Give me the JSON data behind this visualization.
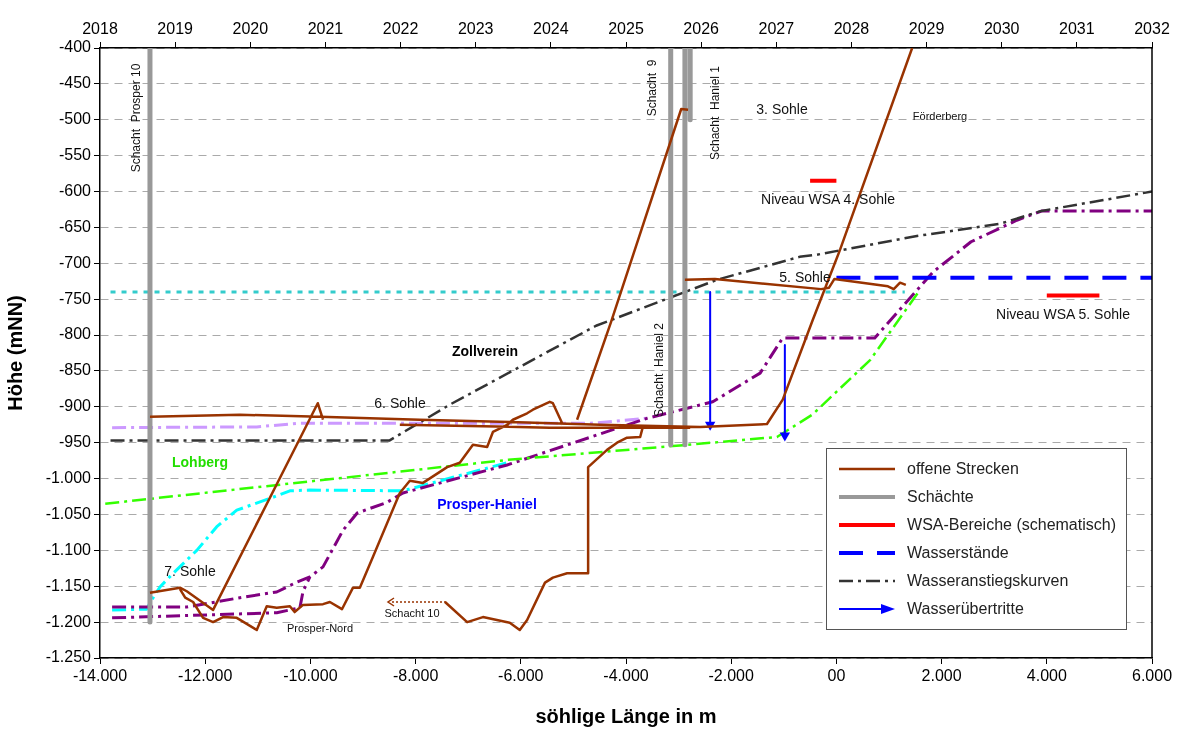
{
  "chart_data": {
    "type": "line",
    "xlabel": "söhlige Länge in m",
    "ylabel": "Höhe (mNN)",
    "xlim": [
      -14000,
      6000
    ],
    "xticks": [
      {
        "value": -14000,
        "label": "-14.000"
      },
      {
        "value": -12000,
        "label": "-12.000"
      },
      {
        "value": -10000,
        "label": "-10.000"
      },
      {
        "value": -8000,
        "label": "-8.000"
      },
      {
        "value": -6000,
        "label": "-6.000"
      },
      {
        "value": -4000,
        "label": "-4.000"
      },
      {
        "value": -2000,
        "label": "-2.000"
      },
      {
        "value": 0,
        "label": "00"
      },
      {
        "value": 2000,
        "label": "2.000"
      },
      {
        "value": 4000,
        "label": "4.000"
      },
      {
        "value": 6000,
        "label": "6.000"
      }
    ],
    "x2lim": [
      2018,
      2032
    ],
    "x2ticks": [
      2018,
      2019,
      2020,
      2021,
      2022,
      2023,
      2024,
      2025,
      2026,
      2027,
      2028,
      2029,
      2030,
      2031,
      2032
    ],
    "ylim": [
      -1250,
      -400
    ],
    "yticks": [
      -400,
      -450,
      -500,
      -550,
      -600,
      -650,
      -700,
      -750,
      -800,
      -850,
      -900,
      -950,
      {
        "value": -1000,
        "label": "-1.000"
      },
      {
        "value": -1050,
        "label": "-1.050"
      },
      {
        "value": -1100,
        "label": "-1.100"
      },
      {
        "value": -1150,
        "label": "-1.150"
      },
      {
        "value": -1200,
        "label": "-1.200"
      },
      {
        "value": -1250,
        "label": "-1.250"
      }
    ],
    "grid": "y",
    "legend": "bottom right",
    "series": [
      {
        "name": "offene Strecken",
        "color": "#993300",
        "line_style": "solid",
        "x": [
          -13050,
          -11340,
          -9820,
          -7920,
          -6210,
          -4490,
          -2590,
          -1320,
          -1020,
          -450,
          70,
          1440,
          null,
          -8300,
          -5450,
          -2780,
          null,
          -4930,
          -4290,
          -2950,
          -2820,
          null,
          -2880,
          -2310,
          -290,
          -140,
          -40,
          980,
          1090,
          1210,
          1320,
          null,
          -13050,
          -12480,
          -12350,
          -11850,
          -9860,
          -9760,
          null,
          -12480,
          -12380,
          -12230,
          -12040,
          -11850,
          -11660,
          -11400,
          -11020,
          -10830,
          -10640,
          -10390,
          -10300,
          -10140,
          -9760,
          -9630,
          -9400,
          -9190,
          -9060,
          -8810,
          -8300,
          -8110,
          -7860,
          -7400,
          -7160,
          -6910,
          -6640,
          -6530,
          -6260,
          -6150,
          -5880,
          -5770,
          -5450,
          -5390,
          -5200,
          null,
          -7440,
          -7020,
          -6720,
          -6210,
          -6020,
          -5880,
          -5540,
          -5390,
          -5120,
          -4720,
          -4720,
          -4360,
          -4170,
          -3980,
          -3730,
          -3680
        ],
        "values": [
          -914,
          -911,
          -914,
          -918,
          -921,
          -925,
          -928,
          -924,
          -890,
          -779,
          -681,
          -400,
          null,
          -925,
          -929,
          -929,
          null,
          -918,
          -783,
          -485,
          -486,
          null,
          -723,
          -722,
          -736,
          -734,
          -722,
          -732,
          -736,
          -727,
          -730,
          null,
          -1159,
          -1152,
          -1157,
          -1183,
          -895,
          -918,
          null,
          -1154,
          -1166,
          -1172,
          -1194,
          -1200,
          -1193,
          -1194,
          -1211,
          -1178,
          -1180,
          -1178,
          -1186,
          -1176,
          -1175,
          -1172,
          -1182,
          -1152,
          -1152,
          -1109,
          -1020,
          -1003,
          -1006,
          -984,
          -978,
          -953,
          -956,
          -935,
          -925,
          -918,
          -909,
          -904,
          -893,
          -895,
          -925,
          null,
          -1172,
          -1200,
          -1193,
          -1201,
          -1211,
          -1197,
          -1145,
          -1138,
          -1132,
          -1132,
          -984,
          -960,
          -950,
          -943,
          -942,
          -928
        ]
      },
      {
        "name": "Schächte",
        "color": "#999999",
        "line_style": "solid",
        "x": [
          -13050,
          -13050,
          null,
          -3150,
          -3150,
          null,
          -2880,
          -2880,
          null,
          -2780,
          -2780
        ],
        "values": [
          -400,
          -1200,
          null,
          -400,
          -953,
          null,
          -400,
          -953,
          null,
          -400,
          -500
        ]
      },
      {
        "name": "WSA-Bereiche (schematisch)",
        "color": "#ff0000",
        "line_style": "solid",
        "x": [
          -500,
          0,
          null,
          4000,
          5000
        ],
        "values": [
          -585,
          -585,
          null,
          -745,
          -745
        ]
      },
      {
        "name": "Wasserstände",
        "color": "#0000ff",
        "line_style": "dashed",
        "x": [
          0,
          6000
        ],
        "values": [
          -720,
          -720
        ]
      },
      {
        "name": "Wasseranstiegskurven",
        "color": "#333333",
        "line_style": "dashed",
        "x": [
          -13800,
          -8500,
          -7350,
          -4570,
          -2270,
          -700,
          -370,
          1530,
          3110,
          3900,
          6000
        ],
        "values": [
          -947,
          -947,
          -897,
          -787,
          -723,
          -691,
          -688,
          -662,
          -645,
          -627,
          -600
        ]
      },
      {
        "name": "Wasserübertritte",
        "color": "#0000ff",
        "line_style": "solid",
        "marker": "triangle",
        "x": [
          -2400,
          -2400,
          null,
          -980,
          -980
        ],
        "values": [
          -740,
          -925,
          null,
          -814,
          -940
        ]
      },
      {
        "color": "#33ff00",
        "line_style": "dashed",
        "x": [
          -13900,
          -6260,
          -2840,
          -1130,
          -460,
          640,
          1590
        ],
        "values": [
          -1035,
          -974,
          -953,
          -942,
          -911,
          -835,
          -737
        ]
      },
      {
        "color": "#800080",
        "line_style": "dashed",
        "x": [
          -13770,
          -13050,
          -12350,
          -11340,
          -10640,
          -10250,
          -10010,
          -9760,
          -9380,
          -9110,
          -8540,
          -8240,
          -6260,
          -3600,
          -2350,
          -1450,
          -1020,
          730,
          1840,
          2560,
          3430,
          3910,
          6000
        ],
        "values": [
          -1179,
          -1179,
          -1179,
          -1166,
          -1158,
          -1144,
          -1137,
          -1123,
          -1072,
          -1048,
          -1033,
          -1020,
          -981,
          -916,
          -893,
          -853,
          -804,
          -804,
          -712,
          -670,
          -640,
          -627,
          -627
        ]
      },
      {
        "color": "#800080",
        "line_style": "dashed",
        "x": [
          -13770,
          -10640,
          -10200,
          -10140,
          -10010
        ],
        "values": [
          -1194,
          -1187,
          -1180,
          -1157,
          -1137
        ]
      },
      {
        "color": "#cc99ff",
        "line_style": "dashed",
        "x": [
          -13770,
          -11020,
          -10250,
          -4680,
          -3600
        ],
        "values": [
          -929,
          -928,
          -923,
          -923,
          -916
        ]
      },
      {
        "color": "#00ffff",
        "line_style": "dashed",
        "x": [
          -13770,
          -13110,
          -13050,
          -12860,
          -12610,
          -12160,
          -11780,
          -11400,
          -10710,
          -10390,
          -10010,
          -8240,
          -6260
        ],
        "values": [
          -1183,
          -1182,
          -1173,
          -1151,
          -1132,
          -1100,
          -1067,
          -1044,
          -1026,
          -1017,
          -1016,
          -1017,
          -978
        ]
      },
      {
        "color": "#33cccc",
        "line_style": "dotted",
        "x": [
          -13800,
          1300
        ],
        "values": [
          -740,
          -740
        ]
      }
    ],
    "annotations": [
      "Schacht  Prosper 10",
      "Schacht  9",
      "Schacht  Haniel 2",
      "Schacht  Haniel 1",
      "3. Sohle",
      "Förderberg",
      "Niveau WSA 4. Sohle",
      "5. Sohle",
      "Niveau WSA 5. Sohle",
      "Zollverein",
      "6. Sohle",
      "Lohberg",
      "Prosper-Haniel",
      "7. Sohle",
      "Schacht 10",
      "Prosper-Nord"
    ]
  }
}
